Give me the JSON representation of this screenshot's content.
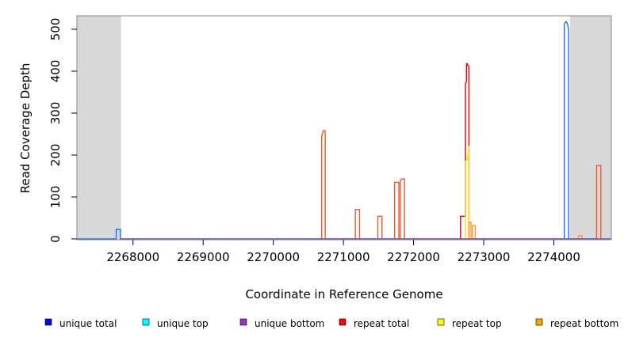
{
  "chart_data": {
    "type": "line",
    "xlabel": "Coordinate in Reference Genome",
    "ylabel": "Read Coverage Depth",
    "xlim": [
      2267200,
      2274820
    ],
    "ylim": [
      -2,
      532
    ],
    "xticks": [
      2268000,
      2269000,
      2270000,
      2271000,
      2272000,
      2273000,
      2274000
    ],
    "yticks": [
      0,
      100,
      200,
      300,
      400,
      500
    ],
    "shaded_regions": [
      {
        "from": 2267200,
        "to": 2267830,
        "color": "#d8d8d8"
      },
      {
        "from": 2274230,
        "to": 2274820,
        "color": "#d8d8d8"
      }
    ],
    "legend": [
      {
        "name": "unique total",
        "color": "#0000ff"
      },
      {
        "name": "unique top",
        "color": "#00ffff"
      },
      {
        "name": "unique bottom",
        "color": "#9932cc"
      },
      {
        "name": "repeat total",
        "color": "#ff0000"
      },
      {
        "name": "repeat top",
        "color": "#ffff00"
      },
      {
        "name": "repeat bottom",
        "color": "#ffa500"
      }
    ],
    "series": [
      {
        "color": "#1e6ff0",
        "x": [
          2267200,
          2267760,
          2267760,
          2267820,
          2267820,
          2274150,
          2274150,
          2274165,
          2274180,
          2274195,
          2274210,
          2274210,
          2274820
        ],
        "y": [
          0,
          0,
          23,
          23,
          0,
          0,
          512,
          517,
          518,
          512,
          500,
          0,
          0
        ]
      },
      {
        "color": "#e00000",
        "x": [
          2272670,
          2272670,
          2272740,
          2272740,
          2272755,
          2272755,
          2272765,
          2272765,
          2272790,
          2272790,
          2272810
        ],
        "y": [
          0,
          54,
          54,
          370,
          375,
          418,
          418,
          415,
          412,
          0,
          0
        ]
      },
      {
        "color": "#f4e020",
        "x": [
          2272740,
          2272740,
          2272770,
          2272790,
          2272790,
          2272810
        ],
        "y": [
          0,
          185,
          190,
          222,
          0,
          0
        ]
      },
      {
        "color": "#ff9a30",
        "x": [
          2272790,
          2272790,
          2272820,
          2272820,
          2272840,
          2272840,
          2272880,
          2272880,
          2274350,
          2274350,
          2274400,
          2274400
        ],
        "y": [
          0,
          40,
          40,
          0,
          0,
          32,
          32,
          0,
          0,
          8,
          8,
          0
        ]
      },
      {
        "color": "#f2582a",
        "x": [
          2270690,
          2270690,
          2270710,
          2270710,
          2270740,
          2270740,
          2271170,
          2271170,
          2271230,
          2271230,
          2271490,
          2271490,
          2271550,
          2271550,
          2271730,
          2271730,
          2271790,
          2271790,
          2271810,
          2271810,
          2271830,
          2271830,
          2271870,
          2271870,
          2274610,
          2274610,
          2274670,
          2274670
        ],
        "y": [
          0,
          245,
          255,
          258,
          258,
          0,
          0,
          70,
          70,
          0,
          0,
          54,
          54,
          0,
          0,
          135,
          135,
          0,
          0,
          138,
          143,
          143,
          143,
          0,
          0,
          175,
          175,
          0
        ]
      },
      {
        "color": "#7a4fd6",
        "x": [
          2267820,
          2274820
        ],
        "y": [
          0,
          0
        ]
      }
    ]
  }
}
